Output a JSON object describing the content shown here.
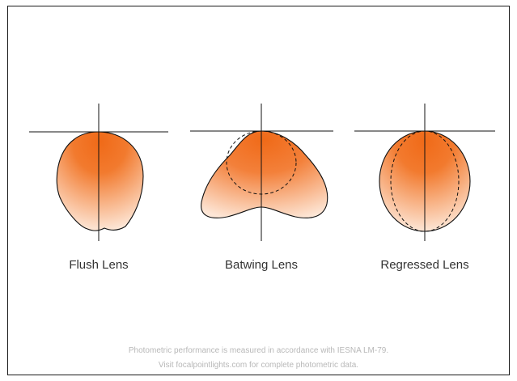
{
  "lenses": [
    {
      "name": "flush",
      "label": "Flush Lens"
    },
    {
      "name": "batwing",
      "label": "Batwing Lens"
    },
    {
      "name": "regressed",
      "label": "Regressed Lens"
    }
  ],
  "footnote": {
    "line1": "Photometric performance is measured in accordance with IESNA LM-79.",
    "line2": "Visit focalpointlights.com for complete photometric data."
  },
  "colors": {
    "fill_top": "#f07020",
    "fill_bottom": "#fde3d2",
    "stroke": "#111111",
    "footnote_text": "#b8b8b8"
  }
}
